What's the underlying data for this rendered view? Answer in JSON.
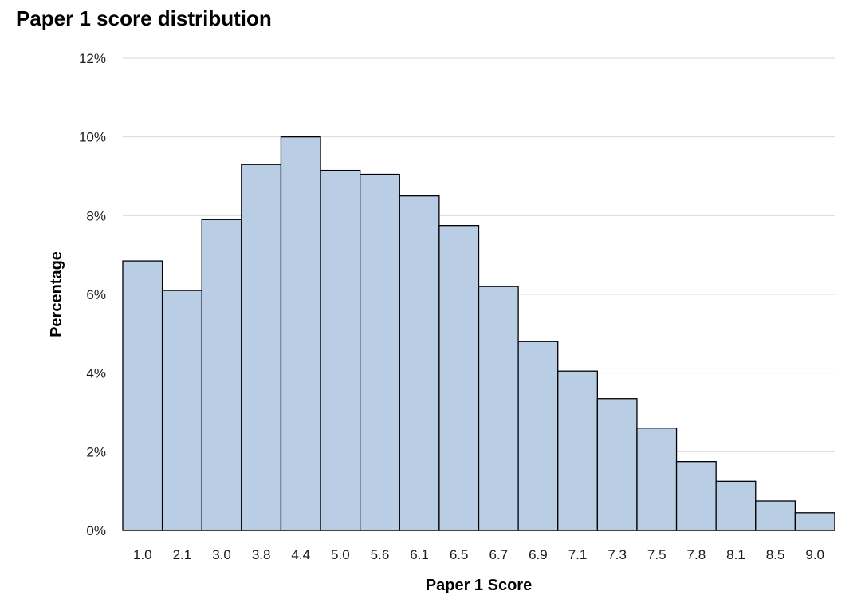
{
  "chart_data": {
    "type": "bar",
    "title": "Paper 1 score distribution",
    "xlabel": "Paper 1 Score",
    "ylabel": "Percentage",
    "categories": [
      "1.0",
      "2.1",
      "3.0",
      "3.8",
      "4.4",
      "5.0",
      "5.6",
      "6.1",
      "6.5",
      "6.7",
      "6.9",
      "7.1",
      "7.3",
      "7.5",
      "7.8",
      "8.1",
      "8.5",
      "9.0"
    ],
    "values": [
      6.85,
      6.1,
      7.9,
      9.3,
      10.0,
      9.15,
      9.05,
      8.5,
      7.75,
      6.2,
      4.8,
      4.05,
      3.35,
      2.6,
      1.75,
      1.25,
      0.75,
      0.45
    ],
    "ylim": [
      0,
      12
    ],
    "yticks": [
      0,
      2,
      4,
      6,
      8,
      10,
      12
    ],
    "ytick_labels": [
      "0%",
      "2%",
      "4%",
      "6%",
      "8%",
      "10%",
      "12%"
    ],
    "grid": true,
    "bar_color": "#b9cde5",
    "bar_edge_color": "#000000",
    "grid_color": "#d9d9d9"
  }
}
